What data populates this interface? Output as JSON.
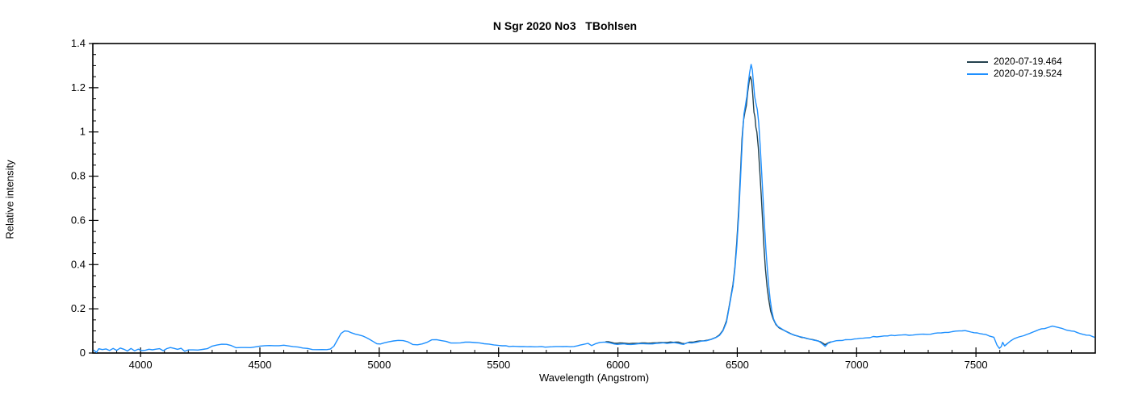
{
  "title": "N Sgr 2020 No3   TBohlsen",
  "chart_data": {
    "type": "line",
    "title": "N Sgr 2020 No3   TBohlsen",
    "xlabel": "Wavelength (Angstrom)",
    "ylabel": "Relative intensity",
    "xlim": [
      3800,
      8000
    ],
    "ylim": [
      0,
      1.4
    ],
    "x_major_ticks": [
      4000,
      4500,
      5000,
      5500,
      6000,
      6500,
      7000,
      7500
    ],
    "x_minor_step": 100,
    "y_major_ticks": [
      0,
      0.2,
      0.4,
      0.6,
      0.8,
      1,
      1.2,
      1.4
    ],
    "y_major_labels": [
      "0",
      "0.2",
      "0.4",
      "0.6",
      "0.8",
      "1",
      "1.2",
      "1.4"
    ],
    "y_minor_step": 0.05,
    "grid": false,
    "legend_position": "top-right-inside",
    "axis_color": "#000000",
    "background_color": "#ffffff",
    "series": [
      {
        "name": "2020-07-19.464",
        "color": "#24424e",
        "points": [
          [
            5950,
            0.052
          ],
          [
            5985,
            0.046
          ],
          [
            6020,
            0.044
          ],
          [
            6060,
            0.044
          ],
          [
            6100,
            0.045
          ],
          [
            6140,
            0.046
          ],
          [
            6180,
            0.048
          ],
          [
            6220,
            0.049
          ],
          [
            6255,
            0.048
          ],
          [
            6280,
            0.043
          ],
          [
            6300,
            0.048
          ],
          [
            6330,
            0.052
          ],
          [
            6360,
            0.056
          ],
          [
            6390,
            0.062
          ],
          [
            6410,
            0.071
          ],
          [
            6425,
            0.083
          ],
          [
            6440,
            0.104
          ],
          [
            6455,
            0.145
          ],
          [
            6465,
            0.205
          ],
          [
            6475,
            0.265
          ],
          [
            6482,
            0.31
          ],
          [
            6490,
            0.39
          ],
          [
            6498,
            0.5
          ],
          [
            6506,
            0.65
          ],
          [
            6514,
            0.83
          ],
          [
            6520,
            0.97
          ],
          [
            6526,
            1.05
          ],
          [
            6532,
            1.09
          ],
          [
            6538,
            1.12
          ],
          [
            6544,
            1.18
          ],
          [
            6550,
            1.23
          ],
          [
            6555,
            1.25
          ],
          [
            6560,
            1.23
          ],
          [
            6565,
            1.17
          ],
          [
            6570,
            1.09
          ],
          [
            6574,
            1.07
          ],
          [
            6578,
            1.02
          ],
          [
            6582,
            1.0
          ],
          [
            6588,
            0.93
          ],
          [
            6594,
            0.83
          ],
          [
            6600,
            0.72
          ],
          [
            6606,
            0.6
          ],
          [
            6612,
            0.48
          ],
          [
            6618,
            0.38
          ],
          [
            6625,
            0.3
          ],
          [
            6632,
            0.24
          ],
          [
            6640,
            0.19
          ],
          [
            6650,
            0.155
          ],
          [
            6662,
            0.13
          ],
          [
            6675,
            0.115
          ],
          [
            6690,
            0.105
          ],
          [
            6710,
            0.095
          ],
          [
            6730,
            0.085
          ],
          [
            6755,
            0.076
          ],
          [
            6780,
            0.068
          ],
          [
            6805,
            0.062
          ],
          [
            6830,
            0.057
          ],
          [
            6850,
            0.05
          ],
          [
            6868,
            0.038
          ],
          [
            6880,
            0.046
          ],
          [
            6890,
            0.05
          ]
        ]
      },
      {
        "name": "2020-07-19.524",
        "color": "#1e90ff",
        "points": [
          [
            3805,
            0.015
          ],
          [
            3815,
            0.005
          ],
          [
            3825,
            0.02
          ],
          [
            3840,
            0.012
          ],
          [
            3855,
            0.022
          ],
          [
            3870,
            0.01
          ],
          [
            3885,
            0.018
          ],
          [
            3900,
            0.012
          ],
          [
            3915,
            0.02
          ],
          [
            3930,
            0.014
          ],
          [
            3945,
            0.008
          ],
          [
            3960,
            0.018
          ],
          [
            3975,
            0.012
          ],
          [
            3990,
            0.02
          ],
          [
            4005,
            0.014
          ],
          [
            4020,
            0.01
          ],
          [
            4035,
            0.018
          ],
          [
            4050,
            0.012
          ],
          [
            4065,
            0.016
          ],
          [
            4080,
            0.02
          ],
          [
            4095,
            0.013
          ],
          [
            4110,
            0.022
          ],
          [
            4125,
            0.025
          ],
          [
            4140,
            0.018
          ],
          [
            4155,
            0.015
          ],
          [
            4170,
            0.02
          ],
          [
            4185,
            0.012
          ],
          [
            4200,
            0.015
          ],
          [
            4220,
            0.012
          ],
          [
            4240,
            0.015
          ],
          [
            4260,
            0.018
          ],
          [
            4280,
            0.022
          ],
          [
            4300,
            0.03
          ],
          [
            4320,
            0.036
          ],
          [
            4340,
            0.04
          ],
          [
            4360,
            0.038
          ],
          [
            4380,
            0.032
          ],
          [
            4400,
            0.026
          ],
          [
            4420,
            0.024
          ],
          [
            4440,
            0.025
          ],
          [
            4460,
            0.026
          ],
          [
            4480,
            0.028
          ],
          [
            4500,
            0.03
          ],
          [
            4520,
            0.032
          ],
          [
            4540,
            0.034
          ],
          [
            4560,
            0.035
          ],
          [
            4580,
            0.035
          ],
          [
            4600,
            0.034
          ],
          [
            4620,
            0.032
          ],
          [
            4640,
            0.03
          ],
          [
            4660,
            0.026
          ],
          [
            4680,
            0.022
          ],
          [
            4700,
            0.02
          ],
          [
            4720,
            0.017
          ],
          [
            4740,
            0.015
          ],
          [
            4760,
            0.014
          ],
          [
            4780,
            0.015
          ],
          [
            4795,
            0.018
          ],
          [
            4810,
            0.03
          ],
          [
            4825,
            0.06
          ],
          [
            4840,
            0.09
          ],
          [
            4855,
            0.1
          ],
          [
            4870,
            0.098
          ],
          [
            4885,
            0.09
          ],
          [
            4900,
            0.085
          ],
          [
            4915,
            0.082
          ],
          [
            4930,
            0.078
          ],
          [
            4945,
            0.07
          ],
          [
            4960,
            0.062
          ],
          [
            4975,
            0.05
          ],
          [
            4990,
            0.042
          ],
          [
            5005,
            0.04
          ],
          [
            5020,
            0.044
          ],
          [
            5040,
            0.05
          ],
          [
            5060,
            0.055
          ],
          [
            5080,
            0.056
          ],
          [
            5100,
            0.055
          ],
          [
            5120,
            0.05
          ],
          [
            5140,
            0.04
          ],
          [
            5160,
            0.036
          ],
          [
            5180,
            0.04
          ],
          [
            5200,
            0.05
          ],
          [
            5220,
            0.058
          ],
          [
            5240,
            0.06
          ],
          [
            5260,
            0.058
          ],
          [
            5280,
            0.052
          ],
          [
            5300,
            0.046
          ],
          [
            5320,
            0.045
          ],
          [
            5340,
            0.047
          ],
          [
            5360,
            0.05
          ],
          [
            5380,
            0.05
          ],
          [
            5400,
            0.048
          ],
          [
            5420,
            0.045
          ],
          [
            5440,
            0.042
          ],
          [
            5460,
            0.04
          ],
          [
            5480,
            0.037
          ],
          [
            5500,
            0.035
          ],
          [
            5530,
            0.032
          ],
          [
            5560,
            0.03
          ],
          [
            5590,
            0.03
          ],
          [
            5620,
            0.029
          ],
          [
            5650,
            0.029
          ],
          [
            5680,
            0.028
          ],
          [
            5710,
            0.028
          ],
          [
            5740,
            0.028
          ],
          [
            5770,
            0.028
          ],
          [
            5800,
            0.03
          ],
          [
            5830,
            0.033
          ],
          [
            5855,
            0.04
          ],
          [
            5875,
            0.045
          ],
          [
            5890,
            0.032
          ],
          [
            5905,
            0.042
          ],
          [
            5925,
            0.048
          ],
          [
            5945,
            0.05
          ],
          [
            5965,
            0.046
          ],
          [
            5985,
            0.042
          ],
          [
            6010,
            0.04
          ],
          [
            6040,
            0.04
          ],
          [
            6070,
            0.04
          ],
          [
            6100,
            0.041
          ],
          [
            6130,
            0.042
          ],
          [
            6160,
            0.043
          ],
          [
            6190,
            0.045
          ],
          [
            6220,
            0.046
          ],
          [
            6250,
            0.045
          ],
          [
            6275,
            0.04
          ],
          [
            6290,
            0.045
          ],
          [
            6310,
            0.047
          ],
          [
            6330,
            0.05
          ],
          [
            6350,
            0.052
          ],
          [
            6370,
            0.055
          ],
          [
            6390,
            0.06
          ],
          [
            6410,
            0.068
          ],
          [
            6425,
            0.08
          ],
          [
            6440,
            0.1
          ],
          [
            6455,
            0.14
          ],
          [
            6465,
            0.2
          ],
          [
            6475,
            0.26
          ],
          [
            6482,
            0.3
          ],
          [
            6490,
            0.38
          ],
          [
            6498,
            0.48
          ],
          [
            6506,
            0.62
          ],
          [
            6514,
            0.8
          ],
          [
            6522,
            0.98
          ],
          [
            6528,
            1.08
          ],
          [
            6534,
            1.12
          ],
          [
            6540,
            1.16
          ],
          [
            6546,
            1.22
          ],
          [
            6552,
            1.27
          ],
          [
            6558,
            1.305
          ],
          [
            6563,
            1.28
          ],
          [
            6568,
            1.22
          ],
          [
            6573,
            1.16
          ],
          [
            6578,
            1.13
          ],
          [
            6584,
            1.1
          ],
          [
            6590,
            1.04
          ],
          [
            6596,
            0.94
          ],
          [
            6602,
            0.82
          ],
          [
            6608,
            0.7
          ],
          [
            6614,
            0.58
          ],
          [
            6620,
            0.47
          ],
          [
            6626,
            0.38
          ],
          [
            6632,
            0.3
          ],
          [
            6638,
            0.24
          ],
          [
            6645,
            0.19
          ],
          [
            6652,
            0.155
          ],
          [
            6660,
            0.135
          ],
          [
            6670,
            0.12
          ],
          [
            6685,
            0.11
          ],
          [
            6700,
            0.1
          ],
          [
            6720,
            0.09
          ],
          [
            6740,
            0.082
          ],
          [
            6760,
            0.075
          ],
          [
            6780,
            0.068
          ],
          [
            6800,
            0.062
          ],
          [
            6820,
            0.058
          ],
          [
            6840,
            0.055
          ],
          [
            6855,
            0.045
          ],
          [
            6868,
            0.028
          ],
          [
            6880,
            0.045
          ],
          [
            6895,
            0.052
          ],
          [
            6915,
            0.055
          ],
          [
            6940,
            0.058
          ],
          [
            6965,
            0.06
          ],
          [
            6990,
            0.063
          ],
          [
            7015,
            0.066
          ],
          [
            7040,
            0.07
          ],
          [
            7070,
            0.073
          ],
          [
            7100,
            0.076
          ],
          [
            7130,
            0.078
          ],
          [
            7160,
            0.08
          ],
          [
            7190,
            0.08
          ],
          [
            7220,
            0.082
          ],
          [
            7250,
            0.084
          ],
          [
            7280,
            0.085
          ],
          [
            7310,
            0.086
          ],
          [
            7340,
            0.09
          ],
          [
            7370,
            0.093
          ],
          [
            7400,
            0.096
          ],
          [
            7430,
            0.1
          ],
          [
            7455,
            0.1
          ],
          [
            7480,
            0.095
          ],
          [
            7505,
            0.09
          ],
          [
            7530,
            0.085
          ],
          [
            7555,
            0.078
          ],
          [
            7575,
            0.07
          ],
          [
            7588,
            0.035
          ],
          [
            7598,
            0.02
          ],
          [
            7606,
            0.03
          ],
          [
            7612,
            0.05
          ],
          [
            7620,
            0.032
          ],
          [
            7630,
            0.04
          ],
          [
            7645,
            0.055
          ],
          [
            7660,
            0.065
          ],
          [
            7680,
            0.072
          ],
          [
            7700,
            0.08
          ],
          [
            7725,
            0.09
          ],
          [
            7750,
            0.1
          ],
          [
            7775,
            0.108
          ],
          [
            7800,
            0.115
          ],
          [
            7820,
            0.12
          ],
          [
            7840,
            0.117
          ],
          [
            7860,
            0.112
          ],
          [
            7880,
            0.105
          ],
          [
            7900,
            0.1
          ],
          [
            7925,
            0.092
          ],
          [
            7950,
            0.085
          ],
          [
            7975,
            0.08
          ],
          [
            7995,
            0.072
          ]
        ]
      }
    ]
  }
}
